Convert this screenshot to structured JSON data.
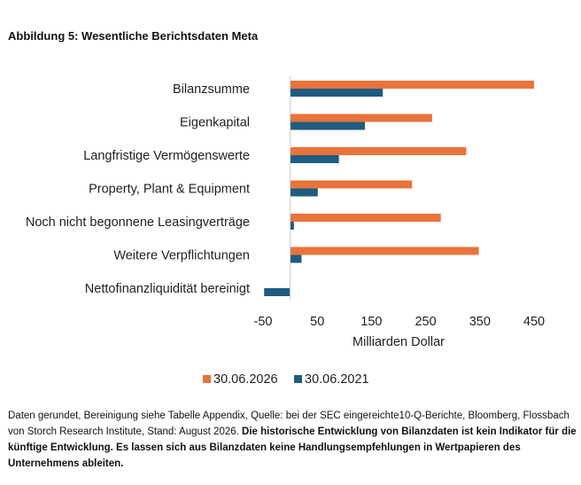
{
  "title": "Abbildung 5: Wesentliche Berichtsdaten Meta",
  "chart_data": {
    "type": "bar",
    "orientation": "horizontal",
    "categories": [
      "Bilanzsumme",
      "Eigenkapital",
      "Langfristige Vermögenswerte",
      "Property, Plant & Equipment",
      "Noch nicht begonnene Leasingverträge",
      "Weitere Verpflichtungen",
      "Nettofinanzliquidität bereinigt"
    ],
    "series": [
      {
        "name": "30.06.2026",
        "color": "#E8743B",
        "values": [
          450,
          262,
          325,
          225,
          278,
          348,
          -1
        ]
      },
      {
        "name": "30.06.2021",
        "color": "#1F5C80",
        "values": [
          171,
          138,
          90,
          51,
          7,
          21,
          -48
        ]
      }
    ],
    "xticks": [
      -50,
      50,
      150,
      250,
      350,
      450
    ],
    "xtick_labels": [
      "-50",
      "50",
      "150",
      "250",
      "350",
      "450"
    ],
    "xlim": [
      -50,
      450
    ],
    "xlabel": "Milliarden Dollar",
    "legend_position": "bottom",
    "grid": false
  },
  "footnote": {
    "normal": "Daten gerundet, Bereinigung siehe Tabelle Appendix, Quelle: bei der SEC eingereichte10-Q-Berichte, Bloomberg, Flossbach von Storch Research Institute, Stand: August 2026. ",
    "bold": "Die historische Entwicklung von Bilanzdaten ist kein Indikator für die künftige Entwicklung. Es lassen sich aus Bilanzdaten keine Handlungsempfehlungen in Wertpapieren des Unternehmens ableiten."
  }
}
